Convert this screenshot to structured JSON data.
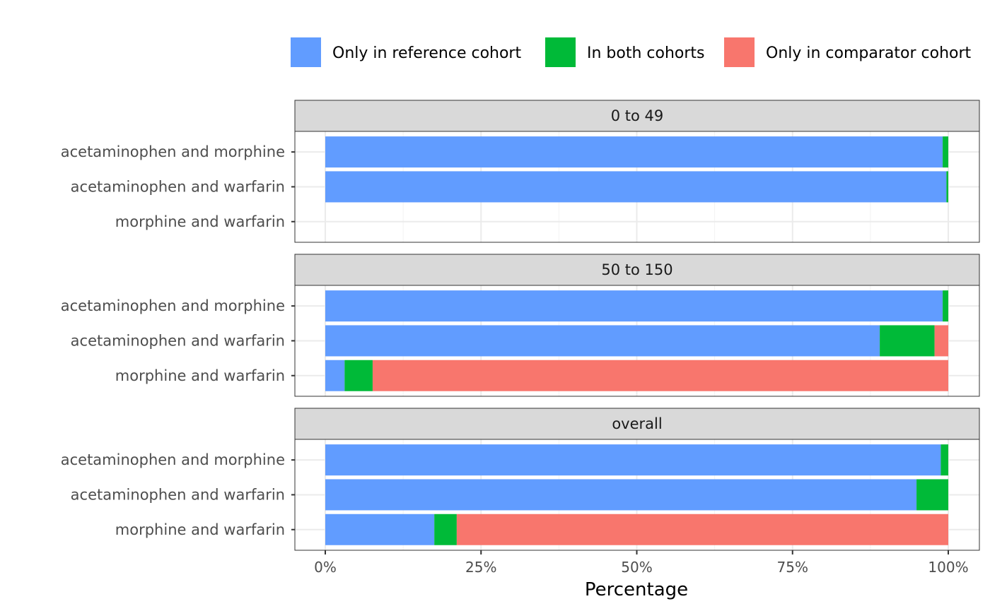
{
  "chart_data": {
    "type": "bar",
    "orientation": "horizontal",
    "stacked": true,
    "title": "",
    "xlabel": "Percentage",
    "ylabel": "",
    "xlim": [
      0,
      100
    ],
    "x_ticks": [
      "0%",
      "25%",
      "50%",
      "75%",
      "100%"
    ],
    "x_tick_values": [
      0,
      25,
      50,
      75,
      100
    ],
    "grid": true,
    "legend_position": "top",
    "categories": [
      "acetaminophen and morphine",
      "acetaminophen and warfarin",
      "morphine and warfarin"
    ],
    "legend": [
      {
        "name": "Only in reference cohort",
        "color": "#619CFF"
      },
      {
        "name": "In both cohorts",
        "color": "#00BA38"
      },
      {
        "name": "Only in comparator cohort",
        "color": "#F8766D"
      }
    ],
    "facets": [
      {
        "label": "0 to 49",
        "rows": [
          {
            "category": "acetaminophen and morphine",
            "values": [
              99.1,
              0.9,
              0
            ]
          },
          {
            "category": "acetaminophen and warfarin",
            "values": [
              99.7,
              0.3,
              0
            ]
          },
          {
            "category": "morphine and warfarin",
            "values": [
              0,
              0,
              0
            ]
          }
        ]
      },
      {
        "label": "50 to 150",
        "rows": [
          {
            "category": "acetaminophen and morphine",
            "values": [
              99.1,
              0.9,
              0
            ]
          },
          {
            "category": "acetaminophen and warfarin",
            "values": [
              89.0,
              8.8,
              2.2
            ]
          },
          {
            "category": "morphine and warfarin",
            "values": [
              3.1,
              4.5,
              92.4
            ]
          }
        ]
      },
      {
        "label": "overall",
        "rows": [
          {
            "category": "acetaminophen and morphine",
            "values": [
              98.8,
              1.2,
              0
            ]
          },
          {
            "category": "acetaminophen and warfarin",
            "values": [
              94.9,
              5.1,
              0
            ]
          },
          {
            "category": "morphine and warfarin",
            "values": [
              17.5,
              3.6,
              78.9
            ]
          }
        ]
      }
    ]
  }
}
